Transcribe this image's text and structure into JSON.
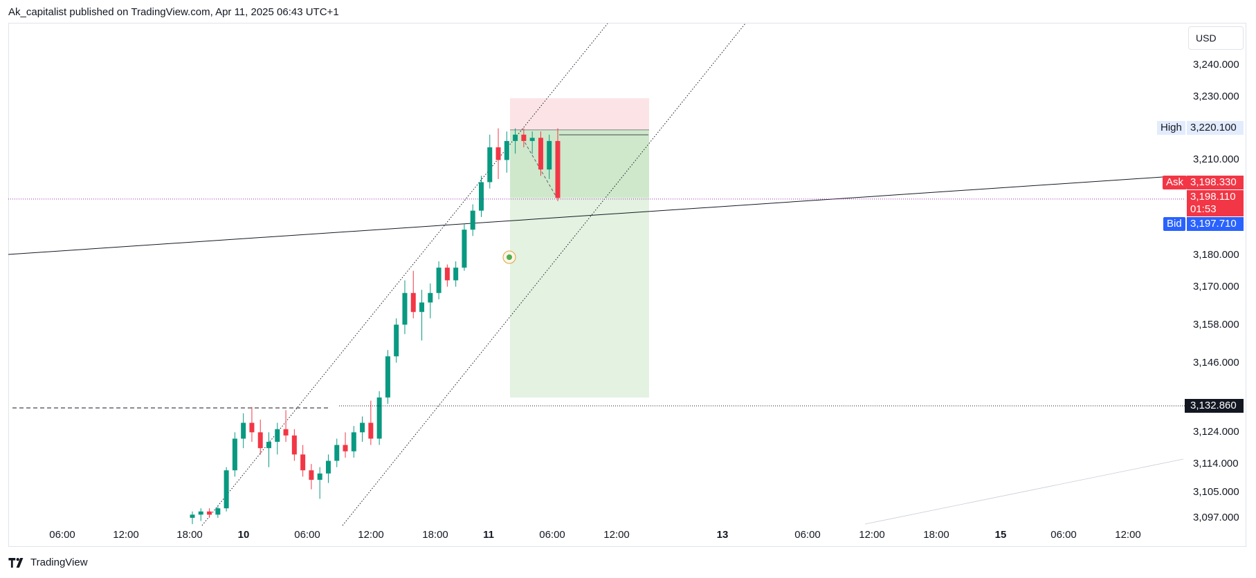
{
  "header": {
    "text": "Ak_capitalist published on TradingView.com, Apr 11, 2025 06:43 UTC+1"
  },
  "currency_label": "USD",
  "price_axis": {
    "ticks": [
      {
        "label": "3,240.000",
        "value": 3240
      },
      {
        "label": "3,230.000",
        "value": 3230
      },
      {
        "label": "3,210.000",
        "value": 3210
      },
      {
        "label": "3,180.000",
        "value": 3180
      },
      {
        "label": "3,170.000",
        "value": 3170
      },
      {
        "label": "3,158.000",
        "value": 3158
      },
      {
        "label": "3,146.000",
        "value": 3146
      },
      {
        "label": "3,124.000",
        "value": 3124
      },
      {
        "label": "3,114.000",
        "value": 3114
      },
      {
        "label": "3,105.000",
        "value": 3105
      },
      {
        "label": "3,097.000",
        "value": 3097
      }
    ]
  },
  "price_tags": {
    "high": {
      "label": "High",
      "value": "3,220.100",
      "color": "#2962ff"
    },
    "ask": {
      "label": "Ask",
      "value": "3,198.330",
      "color": "#f23645"
    },
    "last": {
      "value": "3,198.110",
      "countdown": "01:53",
      "color": "#f23645"
    },
    "bid": {
      "label": "Bid",
      "value": "3,197.710",
      "color": "#2962ff"
    },
    "line_level": {
      "value": "3,132.860",
      "color": "#131722"
    }
  },
  "time_axis": {
    "ticks": [
      {
        "label": "06:00",
        "bold": false
      },
      {
        "label": "12:00",
        "bold": false
      },
      {
        "label": "18:00",
        "bold": false
      },
      {
        "label": "10",
        "bold": true
      },
      {
        "label": "06:00",
        "bold": false
      },
      {
        "label": "12:00",
        "bold": false
      },
      {
        "label": "18:00",
        "bold": false
      },
      {
        "label": "11",
        "bold": true
      },
      {
        "label": "06:00",
        "bold": false
      },
      {
        "label": "12:00",
        "bold": false
      },
      {
        "label": "13",
        "bold": true
      },
      {
        "label": "06:00",
        "bold": false
      },
      {
        "label": "12:00",
        "bold": false
      },
      {
        "label": "18:00",
        "bold": false
      },
      {
        "label": "15",
        "bold": true
      },
      {
        "label": "06:00",
        "bold": false
      },
      {
        "label": "12:00",
        "bold": false
      }
    ]
  },
  "footer": {
    "brand": "TradingView"
  },
  "colors": {
    "up": "#089981",
    "down": "#f23645",
    "stop_zone": "#fce4e6",
    "target_zone": "#e3f2e1",
    "position_zone": "#cfe8cb"
  },
  "chart_data": {
    "type": "candlestick",
    "symbol_currency": "USD",
    "ylim": [
      3094,
      3248
    ],
    "candles_approx_ohlc": [
      [
        3097,
        3099,
        3095,
        3098
      ],
      [
        3098,
        3100,
        3096,
        3099
      ],
      [
        3099,
        3100,
        3097,
        3098
      ],
      [
        3098,
        3101,
        3097,
        3100
      ],
      [
        3100,
        3113,
        3099,
        3112
      ],
      [
        3112,
        3124,
        3110,
        3122
      ],
      [
        3122,
        3130,
        3119,
        3127
      ],
      [
        3127,
        3132,
        3121,
        3124
      ],
      [
        3124,
        3128,
        3117,
        3119
      ],
      [
        3119,
        3124,
        3113,
        3121
      ],
      [
        3121,
        3127,
        3117,
        3125
      ],
      [
        3125,
        3131,
        3121,
        3123
      ],
      [
        3123,
        3125,
        3115,
        3117
      ],
      [
        3117,
        3120,
        3110,
        3112
      ],
      [
        3112,
        3114,
        3106,
        3109
      ],
      [
        3109,
        3113,
        3103,
        3111
      ],
      [
        3111,
        3117,
        3108,
        3115
      ],
      [
        3115,
        3122,
        3113,
        3120
      ],
      [
        3120,
        3124,
        3116,
        3118
      ],
      [
        3118,
        3126,
        3116,
        3124
      ],
      [
        3124,
        3129,
        3121,
        3127
      ],
      [
        3127,
        3134,
        3120,
        3122
      ],
      [
        3122,
        3137,
        3120,
        3135
      ],
      [
        3135,
        3150,
        3133,
        3148
      ],
      [
        3148,
        3160,
        3146,
        3158
      ],
      [
        3158,
        3172,
        3155,
        3168
      ],
      [
        3168,
        3175,
        3160,
        3162
      ],
      [
        3162,
        3169,
        3153,
        3165
      ],
      [
        3165,
        3171,
        3160,
        3168
      ],
      [
        3168,
        3178,
        3166,
        3176
      ],
      [
        3176,
        3177,
        3170,
        3172
      ],
      [
        3172,
        3178,
        3170,
        3176
      ],
      [
        3176,
        3190,
        3175,
        3188
      ],
      [
        3188,
        3196,
        3186,
        3194
      ],
      [
        3194,
        3205,
        3192,
        3203
      ],
      [
        3203,
        3218,
        3201,
        3214
      ],
      [
        3214,
        3220,
        3204,
        3210
      ],
      [
        3210,
        3219,
        3206,
        3216
      ],
      [
        3216,
        3220,
        3212,
        3218
      ],
      [
        3218,
        3220,
        3214,
        3216
      ],
      [
        3216,
        3219,
        3212,
        3217
      ],
      [
        3217,
        3219,
        3205,
        3207
      ],
      [
        3207,
        3218,
        3204,
        3216
      ],
      [
        3216,
        3220,
        3197,
        3198
      ]
    ],
    "drawings": {
      "short_position": {
        "entry": 3219.5,
        "stop": 3229.5,
        "target": 3135
      },
      "horizontal_level": 3132.86,
      "dashed_level": 3132,
      "last_price": 3198.11
    }
  }
}
